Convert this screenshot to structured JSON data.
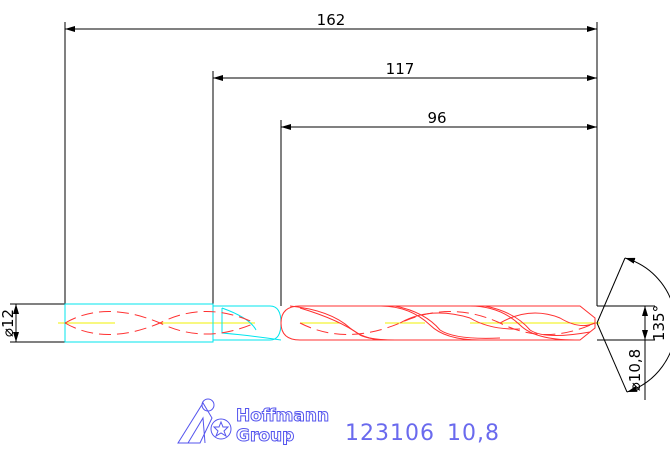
{
  "dimensions": {
    "overall_length": "162",
    "shank_to_tip": "117",
    "flute_length": "96",
    "shank_diameter": "⌀12",
    "drill_diameter": "⌀10,8",
    "point_angle": "135°"
  },
  "logo": {
    "line1": "Hoffmann",
    "line2": "Group"
  },
  "label": {
    "article": "123106",
    "size": "10,8"
  },
  "colors": {
    "dimension": "#000000",
    "shank": "#00e5ee",
    "flute": "#ff3030",
    "centerline": "#f0f000",
    "logo": "#5555ee"
  }
}
